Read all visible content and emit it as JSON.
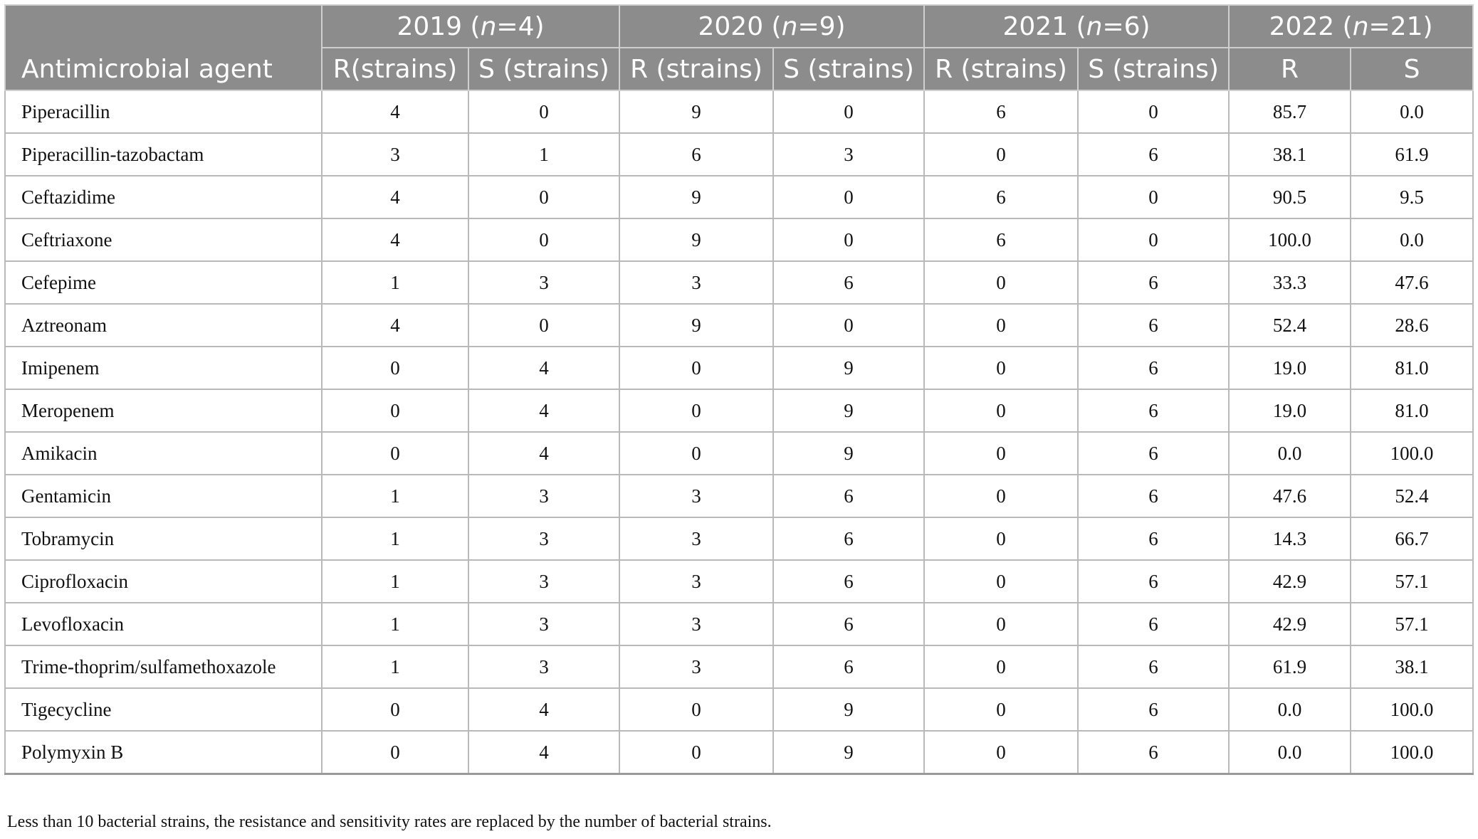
{
  "table": {
    "agent_header": "Antimicrobial agent",
    "year_groups": [
      {
        "year": "2019",
        "n_label": "n",
        "n_value": "=4"
      },
      {
        "year": "2020",
        "n_label": "n",
        "n_value": "=9"
      },
      {
        "year": "2021",
        "n_label": "n",
        "n_value": "=6"
      },
      {
        "year": "2022",
        "n_label": "n",
        "n_value": "=21"
      }
    ],
    "sub_headers": [
      "R(strains)",
      "S (strains)",
      "R (strains)",
      "S (strains)",
      "R (strains)",
      "S (strains)",
      "R",
      "S"
    ],
    "rows": [
      {
        "agent": "Piperacillin",
        "values": [
          "4",
          "0",
          "9",
          "0",
          "6",
          "0",
          "85.7",
          "0.0"
        ]
      },
      {
        "agent": "Piperacillin-tazobactam",
        "values": [
          "3",
          "1",
          "6",
          "3",
          "0",
          "6",
          "38.1",
          "61.9"
        ]
      },
      {
        "agent": "Ceftazidime",
        "values": [
          "4",
          "0",
          "9",
          "0",
          "6",
          "0",
          "90.5",
          "9.5"
        ]
      },
      {
        "agent": "Ceftriaxone",
        "values": [
          "4",
          "0",
          "9",
          "0",
          "6",
          "0",
          "100.0",
          "0.0"
        ]
      },
      {
        "agent": "Cefepime",
        "values": [
          "1",
          "3",
          "3",
          "6",
          "0",
          "6",
          "33.3",
          "47.6"
        ]
      },
      {
        "agent": "Aztreonam",
        "values": [
          "4",
          "0",
          "9",
          "0",
          "0",
          "6",
          "52.4",
          "28.6"
        ]
      },
      {
        "agent": "Imipenem",
        "values": [
          "0",
          "4",
          "0",
          "9",
          "0",
          "6",
          "19.0",
          "81.0"
        ]
      },
      {
        "agent": "Meropenem",
        "values": [
          "0",
          "4",
          "0",
          "9",
          "0",
          "6",
          "19.0",
          "81.0"
        ]
      },
      {
        "agent": "Amikacin",
        "values": [
          "0",
          "4",
          "0",
          "9",
          "0",
          "6",
          "0.0",
          "100.0"
        ]
      },
      {
        "agent": "Gentamicin",
        "values": [
          "1",
          "3",
          "3",
          "6",
          "0",
          "6",
          "47.6",
          "52.4"
        ]
      },
      {
        "agent": "Tobramycin",
        "values": [
          "1",
          "3",
          "3",
          "6",
          "0",
          "6",
          "14.3",
          "66.7"
        ]
      },
      {
        "agent": "Ciprofloxacin",
        "values": [
          "1",
          "3",
          "3",
          "6",
          "0",
          "6",
          "42.9",
          "57.1"
        ]
      },
      {
        "agent": "Levofloxacin",
        "values": [
          "1",
          "3",
          "3",
          "6",
          "0",
          "6",
          "42.9",
          "57.1"
        ]
      },
      {
        "agent": "Trime-thoprim/sulfamethoxazole",
        "values": [
          "1",
          "3",
          "3",
          "6",
          "0",
          "6",
          "61.9",
          "38.1"
        ]
      },
      {
        "agent": "Tigecycline",
        "values": [
          "0",
          "4",
          "0",
          "9",
          "0",
          "6",
          "0.0",
          "100.0"
        ]
      },
      {
        "agent": "Polymyxin B",
        "values": [
          "0",
          "4",
          "0",
          "9",
          "0",
          "6",
          "0.0",
          "100.0"
        ]
      }
    ]
  },
  "footnote": "Less than 10 bacterial strains, the resistance and sensitivity rates are replaced by the number of bacterial strains.",
  "colors": {
    "header_background": "#8c8c8c",
    "header_text": "#ffffff",
    "grid_line": "#b9b9b9"
  }
}
